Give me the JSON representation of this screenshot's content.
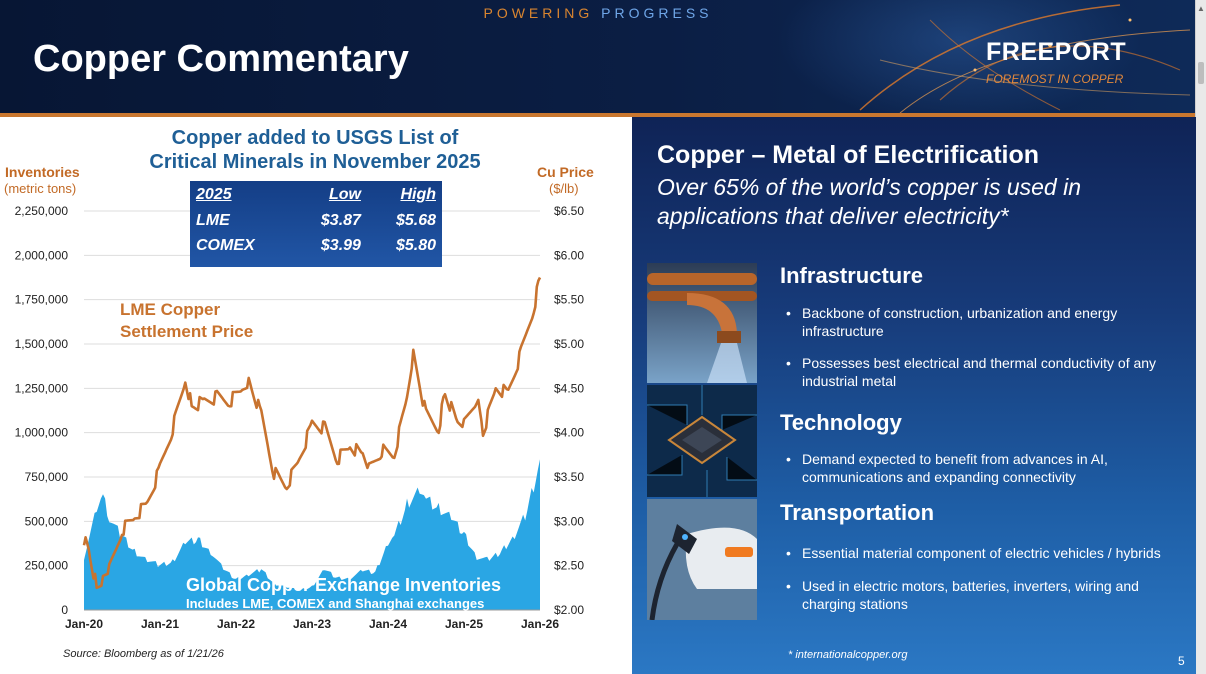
{
  "header": {
    "tagline_a": "POWERING",
    "tagline_b": "PROGRESS",
    "title": "Copper Commentary",
    "logo": "FREEPORT",
    "logo_sub": "FOREMOST IN COPPER",
    "accent_orange": "#c9772f"
  },
  "chart": {
    "title_line1": "Copper added to USGS List of",
    "title_line2": "Critical Minerals in November 2025",
    "left_axis_title": "Inventories",
    "left_axis_unit": "(metric tons)",
    "right_axis_title": "Cu Price",
    "right_axis_unit": "($/lb)",
    "price_label_line1": "LME Copper",
    "price_label_line2": "Settlement Price",
    "inv_label": "Global Copper Exchange Inventories",
    "inv_sublabel": "Includes LME, COMEX and Shanghai exchanges",
    "source": "Source: Bloomberg as of 1/21/26",
    "table": {
      "headers": [
        "2025",
        "Low",
        "High"
      ],
      "rows": [
        [
          "LME",
          "$3.87",
          "$5.68"
        ],
        [
          "COMEX",
          "$3.99",
          "$5.80"
        ]
      ]
    }
  },
  "chart_data": {
    "type": "area",
    "x_tick_labels": [
      "Jan-20",
      "Jan-21",
      "Jan-22",
      "Jan-23",
      "Jan-24",
      "Jan-25",
      "Jan-26"
    ],
    "left_tick_labels": [
      "0",
      "250,000",
      "500,000",
      "750,000",
      "1,000,000",
      "1,250,000",
      "1,500,000",
      "1,750,000",
      "2,000,000",
      "2,250,000"
    ],
    "right_tick_labels": [
      "$2.00",
      "$2.50",
      "$3.00",
      "$3.50",
      "$4.00",
      "$4.50",
      "$5.00",
      "$5.50",
      "$6.00",
      "$6.50"
    ],
    "ylim_left": [
      0,
      2250000
    ],
    "ylim_right": [
      2.0,
      6.5
    ],
    "grid": true,
    "series": [
      {
        "name": "Global Copper Exchange Inventories",
        "axis": "left",
        "color": "#2aa6e4",
        "x": [
          "2020-01",
          "2020-03",
          "2020-04",
          "2020-05",
          "2020-07",
          "2020-09",
          "2020-11",
          "2021-01",
          "2021-03",
          "2021-05",
          "2021-07",
          "2021-09",
          "2021-11",
          "2022-01",
          "2022-03",
          "2022-05",
          "2022-07",
          "2022-09",
          "2022-11",
          "2023-01",
          "2023-03",
          "2023-05",
          "2023-07",
          "2023-09",
          "2023-11",
          "2024-01",
          "2024-02",
          "2024-04",
          "2024-06",
          "2024-07",
          "2024-09",
          "2024-11",
          "2025-01",
          "2025-03",
          "2025-05",
          "2025-07",
          "2025-09",
          "2025-11",
          "2026-01"
        ],
        "values": [
          300000,
          560000,
          630000,
          520000,
          420000,
          330000,
          280000,
          250000,
          270000,
          380000,
          400000,
          330000,
          230000,
          170000,
          200000,
          230000,
          150000,
          130000,
          110000,
          130000,
          230000,
          180000,
          180000,
          220000,
          210000,
          380000,
          420000,
          600000,
          680000,
          620000,
          570000,
          520000,
          430000,
          300000,
          280000,
          330000,
          420000,
          560000,
          850000
        ]
      },
      {
        "name": "LME Copper Settlement Price",
        "axis": "right",
        "color": "#c8732f",
        "x": [
          "2020-01",
          "2020-02",
          "2020-03",
          "2020-04",
          "2020-05",
          "2020-07",
          "2020-09",
          "2020-11",
          "2021-01",
          "2021-03",
          "2021-05",
          "2021-06",
          "2021-08",
          "2021-10",
          "2021-12",
          "2022-02",
          "2022-03",
          "2022-05",
          "2022-07",
          "2022-09",
          "2022-11",
          "2023-01",
          "2023-03",
          "2023-05",
          "2023-07",
          "2023-09",
          "2023-10",
          "2023-12",
          "2024-02",
          "2024-04",
          "2024-05",
          "2024-07",
          "2024-09",
          "2024-10",
          "2024-12",
          "2025-01",
          "2025-03",
          "2025-04",
          "2025-06",
          "2025-08",
          "2025-10",
          "2025-12",
          "2026-01"
        ],
        "values": [
          2.8,
          2.6,
          2.25,
          2.35,
          2.45,
          2.9,
          3.05,
          3.2,
          3.6,
          4.05,
          4.6,
          4.3,
          4.35,
          4.4,
          4.35,
          4.5,
          4.6,
          4.2,
          3.55,
          3.4,
          3.7,
          4.1,
          4.05,
          3.7,
          3.85,
          3.75,
          3.6,
          3.8,
          3.75,
          4.4,
          4.9,
          4.2,
          4.05,
          4.45,
          4.1,
          4.1,
          4.4,
          4.0,
          4.5,
          4.45,
          4.9,
          5.4,
          5.75
        ]
      }
    ]
  },
  "panel": {
    "title": "Copper – Metal of Electrification",
    "subtitle": "Over 65% of the world’s copper is used in applications that deliver electricity*",
    "sections": [
      {
        "title": "Infrastructure",
        "bullets": [
          "Backbone of construction, urbanization and energy infrastructure",
          "Possesses best electrical and thermal conductivity of any industrial metal"
        ]
      },
      {
        "title": "Technology",
        "bullets": [
          "Demand expected to benefit from advances in AI, communications and expanding connectivity"
        ]
      },
      {
        "title": "Transportation",
        "bullets": [
          "Essential material component of electric vehicles / hybrids",
          "Used in electric motors, batteries, inverters, wiring and charging stations"
        ]
      }
    ],
    "footnote": "*  internationalcopper.org",
    "page_number": "5"
  }
}
